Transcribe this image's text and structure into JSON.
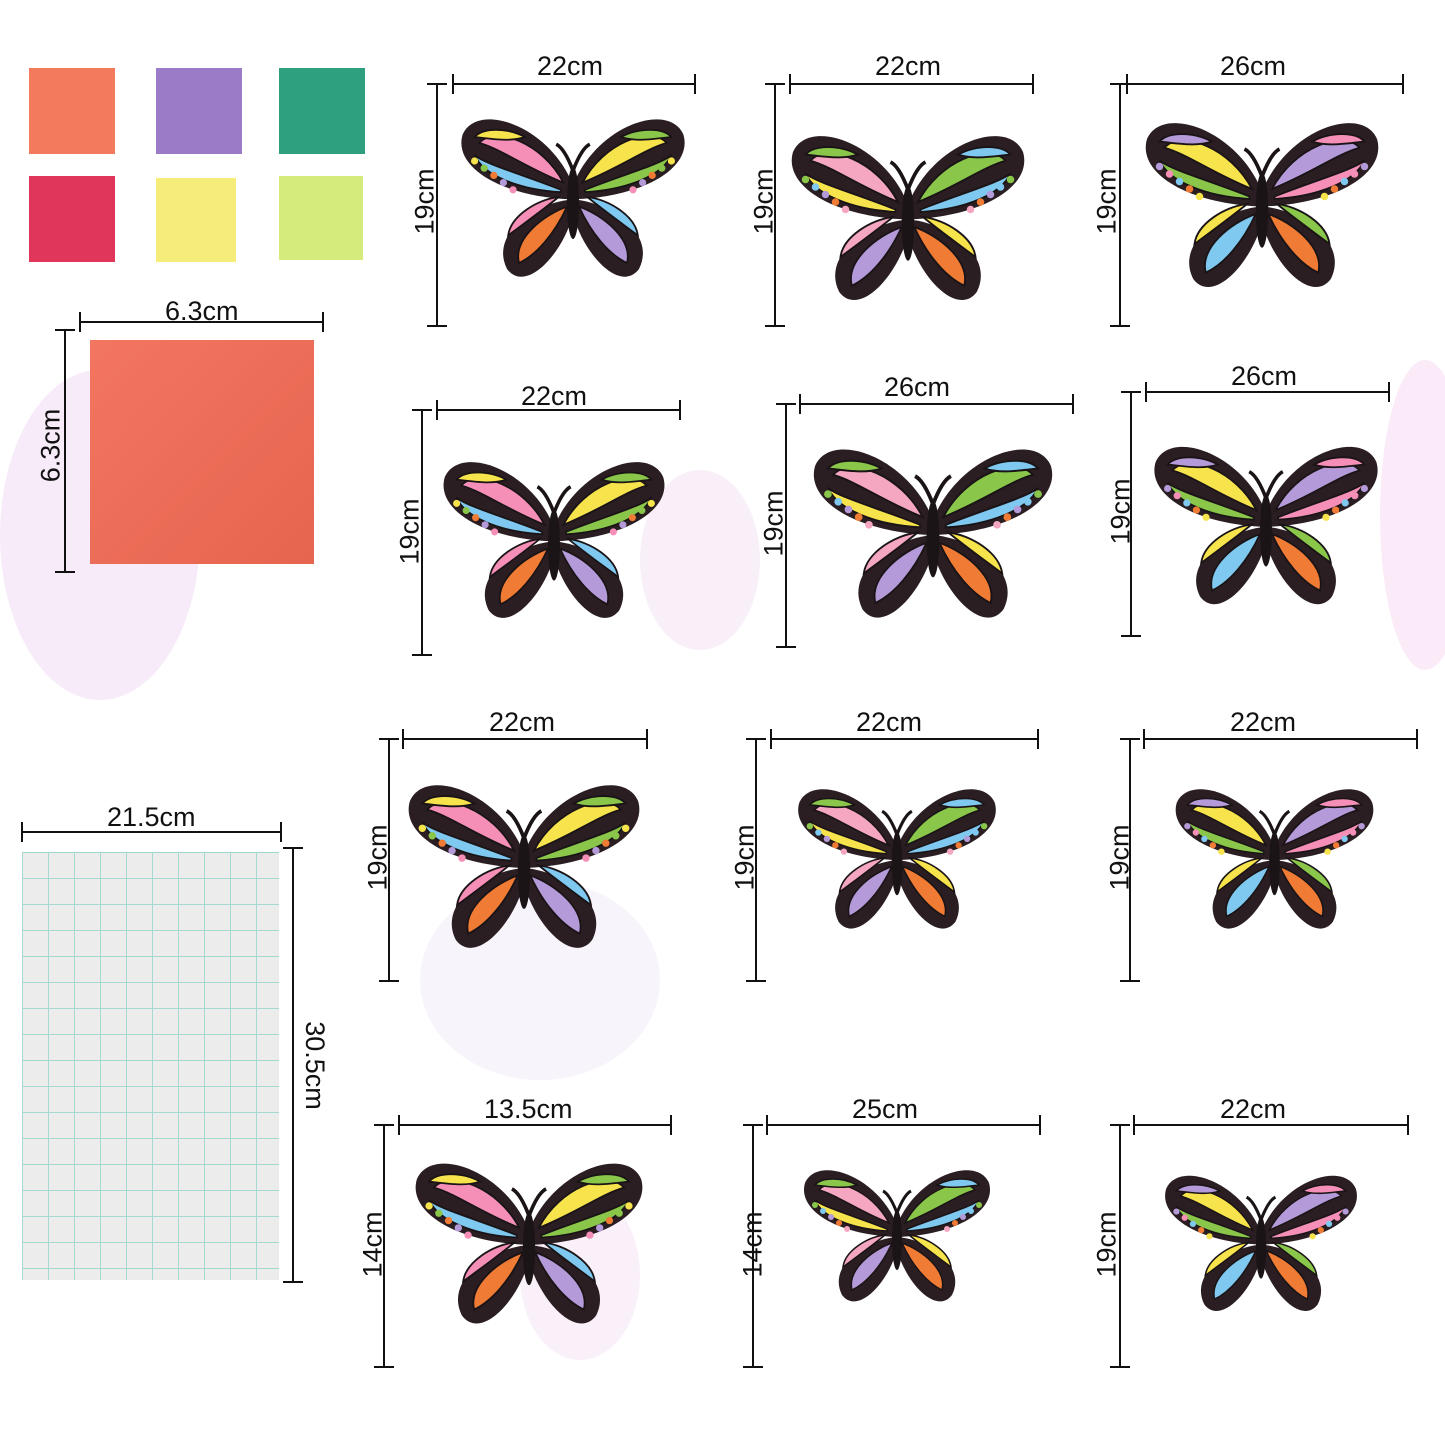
{
  "swatches": [
    {
      "color": "#f37a5c"
    },
    {
      "color": "#9b7bc8"
    },
    {
      "color": "#2fa07f"
    },
    {
      "color": "#e0365c"
    },
    {
      "color": "#f6ec7a"
    },
    {
      "color": "#d5ec7c"
    }
  ],
  "tissue": {
    "width": "6.3cm",
    "height": "6.3cm",
    "color": "#f26a53"
  },
  "sheet": {
    "width": "21.5cm",
    "height": "30.5cm"
  },
  "butterflies": [
    {
      "width": "22cm",
      "height": "19cm"
    },
    {
      "width": "22cm",
      "height": "19cm"
    },
    {
      "width": "26cm",
      "height": "19cm"
    },
    {
      "width": "22cm",
      "height": "19cm"
    },
    {
      "width": "26cm",
      "height": "19cm"
    },
    {
      "width": "26cm",
      "height": "19cm"
    },
    {
      "width": "22cm",
      "height": "19cm"
    },
    {
      "width": "22cm",
      "height": "19cm"
    },
    {
      "width": "22cm",
      "height": "19cm"
    },
    {
      "width": "13.5cm",
      "height": "14cm"
    },
    {
      "width": "25cm",
      "height": "14cm"
    },
    {
      "width": "22cm",
      "height": "19cm"
    }
  ]
}
